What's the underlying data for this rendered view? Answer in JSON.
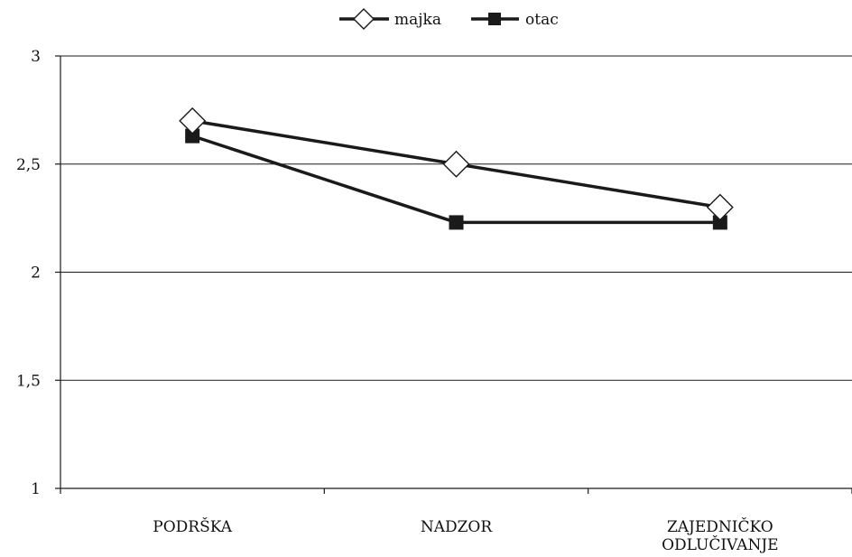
{
  "chart_data": {
    "type": "line",
    "categories": [
      "PODRŠKA",
      "NADZOR",
      "ZAJEDNIČKO ODLUČIVANJE"
    ],
    "category_lines": [
      [
        "PODRŠKA"
      ],
      [
        "NADZOR"
      ],
      [
        "ZAJEDNIČKO",
        "ODLUČIVANJE"
      ]
    ],
    "series": [
      {
        "name": "majka",
        "values": [
          2.7,
          2.5,
          2.3
        ],
        "marker": "diamond-open",
        "color": "#1a1a1a"
      },
      {
        "name": "otac",
        "values": [
          2.63,
          2.23,
          2.23
        ],
        "marker": "square-filled",
        "color": "#1a1a1a"
      }
    ],
    "yticks": [
      "1",
      "1,5",
      "2",
      "2,5",
      "3"
    ],
    "ytick_values": [
      1,
      1.5,
      2,
      2.5,
      3
    ],
    "ylim": [
      1,
      3
    ],
    "grid": true,
    "legend_position": "top-center"
  }
}
